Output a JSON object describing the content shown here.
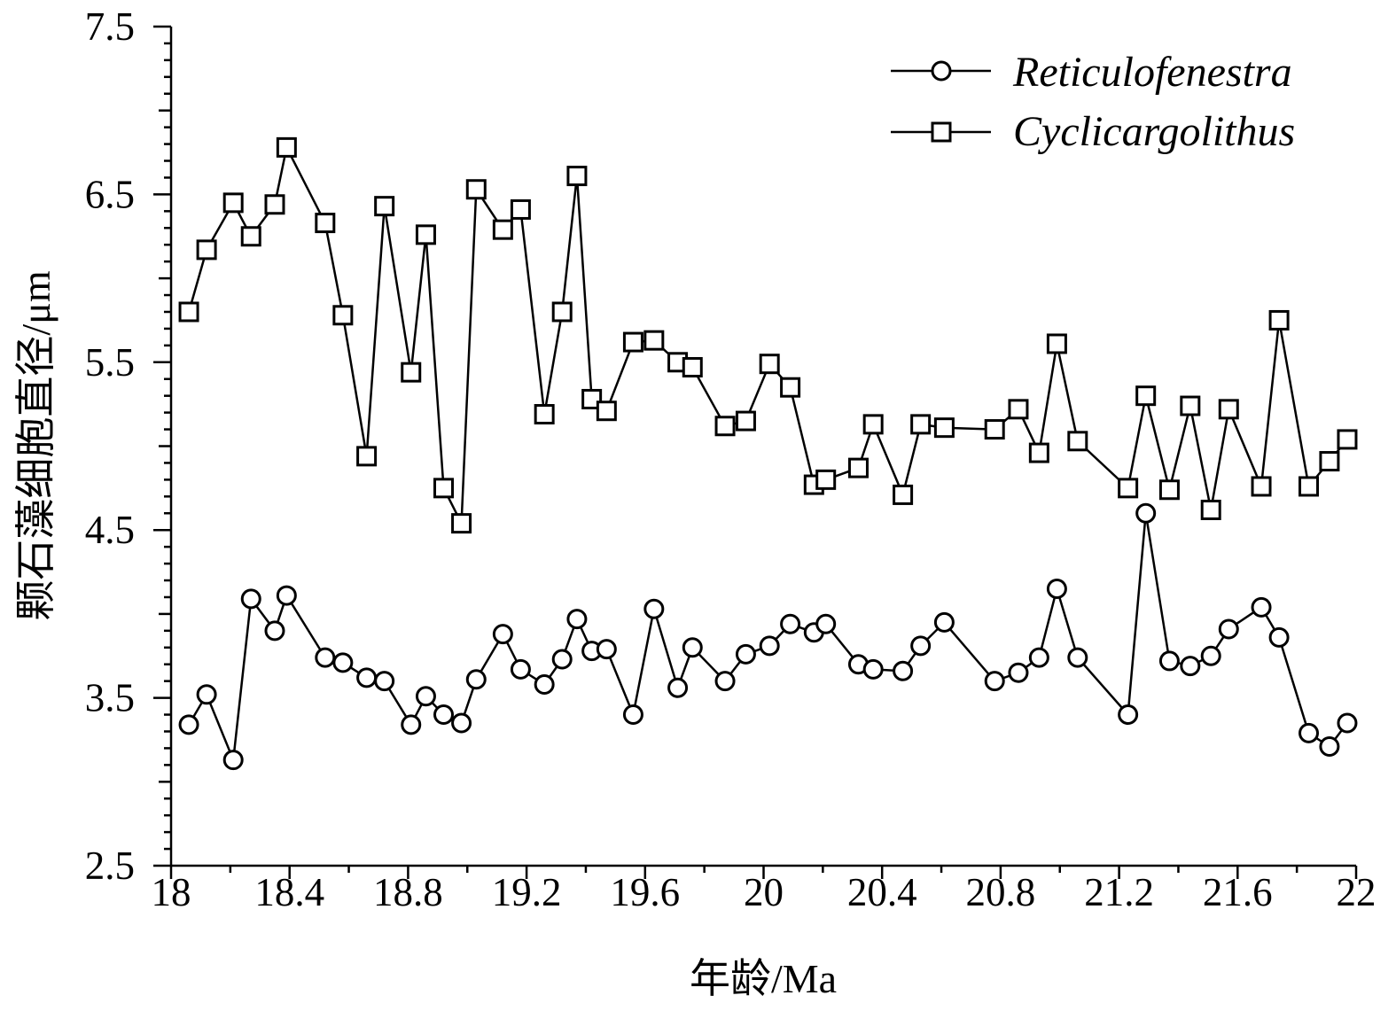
{
  "chart_data": {
    "type": "line",
    "xlabel": "年龄/Ma",
    "ylabel": "颗石藻细胞直径/μm",
    "xlim": [
      18,
      22
    ],
    "ylim": [
      2.5,
      7.5
    ],
    "x_ticks": [
      "18",
      "18.4",
      "18.8",
      "19.2",
      "19.6",
      "20",
      "20.4",
      "20.8",
      "21.2",
      "21.6",
      "22"
    ],
    "y_ticks": [
      "2.5",
      "3.5",
      "4.5",
      "5.5",
      "6.5",
      "7.5"
    ],
    "legend_position": "top-right",
    "grid": false,
    "series": [
      {
        "name": "Reticulofenestra",
        "marker": "circle",
        "color": "#000000",
        "points": [
          [
            18.06,
            3.34
          ],
          [
            18.12,
            3.52
          ],
          [
            18.21,
            3.13
          ],
          [
            18.27,
            4.09
          ],
          [
            18.35,
            3.9
          ],
          [
            18.39,
            4.11
          ],
          [
            18.52,
            3.74
          ],
          [
            18.58,
            3.71
          ],
          [
            18.66,
            3.62
          ],
          [
            18.72,
            3.6
          ],
          [
            18.81,
            3.34
          ],
          [
            18.86,
            3.51
          ],
          [
            18.92,
            3.4
          ],
          [
            18.98,
            3.35
          ],
          [
            19.03,
            3.61
          ],
          [
            19.12,
            3.88
          ],
          [
            19.18,
            3.67
          ],
          [
            19.26,
            3.58
          ],
          [
            19.32,
            3.73
          ],
          [
            19.37,
            3.97
          ],
          [
            19.42,
            3.78
          ],
          [
            19.47,
            3.79
          ],
          [
            19.56,
            3.4
          ],
          [
            19.63,
            4.03
          ],
          [
            19.71,
            3.56
          ],
          [
            19.76,
            3.8
          ],
          [
            19.87,
            3.6
          ],
          [
            19.94,
            3.76
          ],
          [
            20.02,
            3.81
          ],
          [
            20.09,
            3.94
          ],
          [
            20.17,
            3.89
          ],
          [
            20.21,
            3.94
          ],
          [
            20.32,
            3.7
          ],
          [
            20.37,
            3.67
          ],
          [
            20.47,
            3.66
          ],
          [
            20.53,
            3.81
          ],
          [
            20.61,
            3.95
          ],
          [
            20.78,
            3.6
          ],
          [
            20.86,
            3.65
          ],
          [
            20.93,
            3.74
          ],
          [
            20.99,
            4.15
          ],
          [
            21.06,
            3.74
          ],
          [
            21.23,
            3.4
          ],
          [
            21.29,
            4.6
          ],
          [
            21.37,
            3.72
          ],
          [
            21.44,
            3.69
          ],
          [
            21.51,
            3.75
          ],
          [
            21.57,
            3.91
          ],
          [
            21.68,
            4.04
          ],
          [
            21.74,
            3.86
          ],
          [
            21.84,
            3.29
          ],
          [
            21.91,
            3.21
          ],
          [
            21.97,
            3.35
          ]
        ]
      },
      {
        "name": "Cyclicargolithus",
        "marker": "square",
        "color": "#000000",
        "points": [
          [
            18.06,
            5.8
          ],
          [
            18.12,
            6.17
          ],
          [
            18.21,
            6.45
          ],
          [
            18.27,
            6.25
          ],
          [
            18.35,
            6.44
          ],
          [
            18.39,
            6.78
          ],
          [
            18.52,
            6.33
          ],
          [
            18.58,
            5.78
          ],
          [
            18.66,
            4.94
          ],
          [
            18.72,
            6.43
          ],
          [
            18.81,
            5.44
          ],
          [
            18.86,
            6.26
          ],
          [
            18.92,
            4.75
          ],
          [
            18.98,
            4.54
          ],
          [
            19.03,
            6.53
          ],
          [
            19.12,
            6.29
          ],
          [
            19.18,
            6.41
          ],
          [
            19.26,
            5.19
          ],
          [
            19.32,
            5.8
          ],
          [
            19.37,
            6.61
          ],
          [
            19.42,
            5.28
          ],
          [
            19.47,
            5.21
          ],
          [
            19.56,
            5.62
          ],
          [
            19.63,
            5.63
          ],
          [
            19.71,
            5.5
          ],
          [
            19.76,
            5.47
          ],
          [
            19.87,
            5.12
          ],
          [
            19.94,
            5.15
          ],
          [
            20.02,
            5.49
          ],
          [
            20.09,
            5.35
          ],
          [
            20.17,
            4.77
          ],
          [
            20.21,
            4.8
          ],
          [
            20.32,
            4.87
          ],
          [
            20.37,
            5.13
          ],
          [
            20.47,
            4.71
          ],
          [
            20.53,
            5.13
          ],
          [
            20.61,
            5.11
          ],
          [
            20.78,
            5.1
          ],
          [
            20.86,
            5.22
          ],
          [
            20.93,
            4.96
          ],
          [
            20.99,
            5.61
          ],
          [
            21.06,
            5.03
          ],
          [
            21.23,
            4.75
          ],
          [
            21.29,
            5.3
          ],
          [
            21.37,
            4.74
          ],
          [
            21.44,
            5.24
          ],
          [
            21.51,
            4.62
          ],
          [
            21.57,
            5.22
          ],
          [
            21.68,
            4.76
          ],
          [
            21.74,
            5.75
          ],
          [
            21.84,
            4.76
          ],
          [
            21.91,
            4.91
          ],
          [
            21.97,
            5.04
          ]
        ]
      }
    ]
  }
}
